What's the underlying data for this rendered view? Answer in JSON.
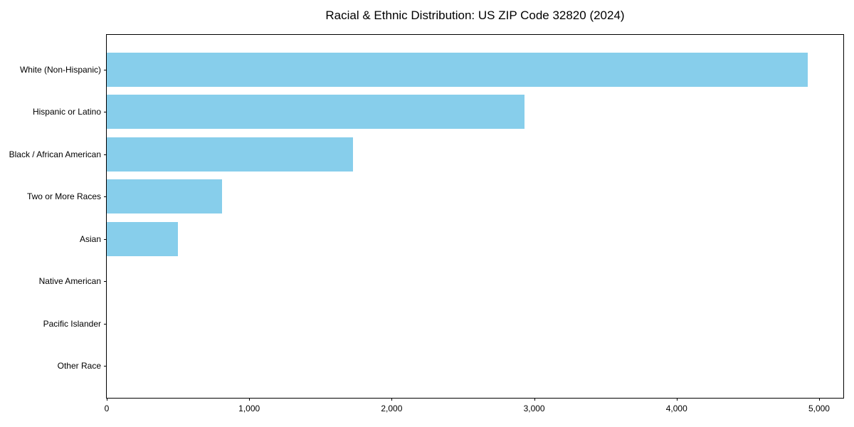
{
  "chart_data": {
    "type": "bar",
    "orientation": "horizontal",
    "title": "Racial & Ethnic Distribution: US ZIP Code 32820 (2024)",
    "xlabel": "",
    "ylabel": "",
    "categories": [
      "White (Non-Hispanic)",
      "Hispanic or Latino",
      "Black / African American",
      "Two or More Races",
      "Asian",
      "Native American",
      "Pacific Islander",
      "Other Race"
    ],
    "values": [
      4920,
      2930,
      1730,
      810,
      500,
      0,
      0,
      0
    ],
    "xlim": [
      0,
      5170
    ],
    "x_ticks": [
      0,
      1000,
      2000,
      3000,
      4000,
      5000
    ],
    "x_tick_labels": [
      "0",
      "1,000",
      "2,000",
      "3,000",
      "4,000",
      "5,000"
    ],
    "bar_color": "#87CEEB",
    "spine_color": "#000000",
    "text_color": "#000000",
    "background_color": "#ffffff",
    "grid": false,
    "legend": null
  }
}
